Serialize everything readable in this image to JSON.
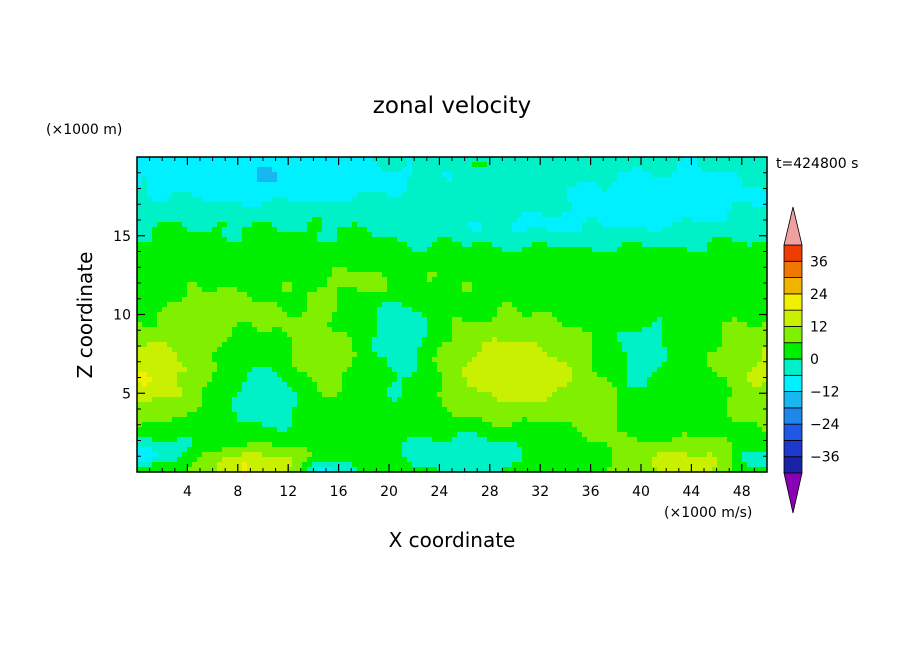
{
  "chart_data": {
    "type": "heatmap",
    "title": "zonal velocity",
    "xlabel": "X coordinate",
    "ylabel": "Z coordinate",
    "x_unit": "(×1000 m/s)",
    "y_unit": "(×1000 m)",
    "time_label": "t=424800 s",
    "xlim": [
      0,
      50
    ],
    "ylim": [
      0,
      20
    ],
    "x_ticks": [
      4,
      8,
      12,
      16,
      20,
      24,
      28,
      32,
      36,
      40,
      44,
      48
    ],
    "y_ticks": [
      5,
      10,
      15
    ],
    "colorbar": {
      "ticks": [
        36,
        24,
        12,
        0,
        -12,
        -24,
        -36
      ],
      "levels": [
        -42,
        -36,
        -30,
        -24,
        -18,
        -12,
        -6,
        0,
        6,
        12,
        18,
        24,
        30,
        36,
        42
      ],
      "colors": [
        "#3a0a8a",
        "#1a22a6",
        "#1d39cf",
        "#1f57e6",
        "#1f86ec",
        "#19b7ef",
        "#00f0ff",
        "#00f0c8",
        "#00f000",
        "#80f000",
        "#c8f000",
        "#f0f000",
        "#f0b400",
        "#f07800",
        "#f03c00",
        "#e81010"
      ],
      "under_color": "#8a00b4",
      "over_color": "#f0a0a0"
    },
    "field_features": [
      {
        "x": 0,
        "z": 6.2,
        "value": 14,
        "sx": 5.5,
        "sz": 2.6
      },
      {
        "x": 30,
        "z": 6.3,
        "value": 14,
        "sx": 5.5,
        "sz": 2.8
      },
      {
        "x": 9,
        "z": 0.4,
        "value": 14,
        "sx": 5.0,
        "sz": 1.2
      },
      {
        "x": 43.5,
        "z": 0.6,
        "value": 12,
        "sx": 4.5,
        "sz": 1.2
      },
      {
        "x": 50,
        "z": 6.5,
        "value": 9,
        "sx": 3.5,
        "sz": 3.0
      },
      {
        "x": 14.5,
        "z": 7.5,
        "value": 6,
        "sx": 3.0,
        "sz": 3.0
      },
      {
        "x": 7,
        "z": 10.2,
        "value": 5,
        "sx": 4.5,
        "sz": 1.6
      },
      {
        "x": 37,
        "z": 3.5,
        "value": 5,
        "sx": 1.8,
        "sz": 2.0
      },
      {
        "x": 20,
        "z": 12,
        "value": 5,
        "sx": 5.0,
        "sz": 1.2
      },
      {
        "x": 10,
        "z": 4.8,
        "value": -8,
        "sx": 3.5,
        "sz": 2.2
      },
      {
        "x": 40,
        "z": 7.5,
        "value": -7,
        "sx": 2.5,
        "sz": 2.5
      },
      {
        "x": 21,
        "z": 8.5,
        "value": -7,
        "sx": 2.5,
        "sz": 4.0
      },
      {
        "x": 26,
        "z": 1.2,
        "value": -7,
        "sx": 6.0,
        "sz": 1.6
      },
      {
        "x": 3,
        "z": 1.5,
        "value": -7,
        "sx": 3.5,
        "sz": 1.2
      },
      {
        "x": 15,
        "z": 0.2,
        "value": -15,
        "sx": 1.8,
        "sz": 0.6
      },
      {
        "x": 49,
        "z": 0.8,
        "value": -12,
        "sx": 1.5,
        "sz": 0.7
      },
      {
        "x": 0.5,
        "z": 1.0,
        "value": -12,
        "sx": 1.2,
        "sz": 0.6
      },
      {
        "x": 10,
        "z": 18.5,
        "value": -9,
        "sx": 12.0,
        "sz": 1.8
      },
      {
        "x": 42,
        "z": 17,
        "value": -9,
        "sx": 9.0,
        "sz": 2.0
      },
      {
        "x": 30,
        "z": 15.5,
        "value": -6,
        "sx": 8.0,
        "sz": 1.0
      },
      {
        "x": 28,
        "z": 19.7,
        "value": 4,
        "sx": 6.0,
        "sz": 0.5
      }
    ]
  }
}
